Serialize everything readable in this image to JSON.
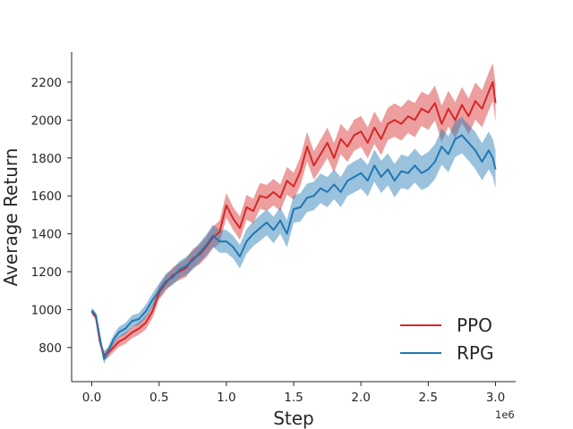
{
  "chart_data": {
    "type": "line",
    "xlabel": "Step",
    "ylabel": "Average Return",
    "x_offset_label": "1e6",
    "xlim": [
      -0.15,
      3.15
    ],
    "ylim": [
      620,
      2360
    ],
    "xticks": [
      0.0,
      0.5,
      1.0,
      1.5,
      2.0,
      2.5,
      3.0
    ],
    "xtick_labels": [
      "0.0",
      "0.5",
      "1.0",
      "1.5",
      "2.0",
      "2.5",
      "3.0"
    ],
    "yticks": [
      800,
      1000,
      1200,
      1400,
      1600,
      1800,
      2000,
      2200
    ],
    "ytick_labels": [
      "800",
      "1000",
      "1200",
      "1400",
      "1600",
      "1800",
      "2000",
      "2200"
    ],
    "grid": false,
    "legend_position": "lower-right",
    "x": [
      0.0,
      0.03,
      0.06,
      0.09,
      0.12,
      0.16,
      0.2,
      0.25,
      0.3,
      0.35,
      0.4,
      0.45,
      0.5,
      0.55,
      0.6,
      0.65,
      0.7,
      0.75,
      0.8,
      0.85,
      0.9,
      0.95,
      1.0,
      1.05,
      1.1,
      1.15,
      1.2,
      1.25,
      1.3,
      1.35,
      1.4,
      1.45,
      1.5,
      1.55,
      1.6,
      1.65,
      1.7,
      1.75,
      1.8,
      1.85,
      1.9,
      1.95,
      2.0,
      2.05,
      2.1,
      2.15,
      2.2,
      2.25,
      2.3,
      2.35,
      2.4,
      2.45,
      2.5,
      2.55,
      2.6,
      2.65,
      2.7,
      2.75,
      2.8,
      2.85,
      2.9,
      2.95,
      2.98,
      3.0
    ],
    "series": [
      {
        "name": "PPO",
        "color": "#d62728",
        "values": [
          990,
          960,
          830,
          760,
          770,
          800,
          830,
          850,
          880,
          900,
          930,
          990,
          1090,
          1140,
          1180,
          1200,
          1220,
          1270,
          1290,
          1330,
          1380,
          1410,
          1550,
          1480,
          1430,
          1540,
          1520,
          1600,
          1590,
          1620,
          1590,
          1680,
          1650,
          1730,
          1860,
          1760,
          1820,
          1880,
          1800,
          1900,
          1860,
          1920,
          1940,
          1880,
          1960,
          1900,
          1980,
          2000,
          1980,
          2020,
          2000,
          2060,
          2040,
          2090,
          1980,
          2060,
          2000,
          2080,
          2020,
          2100,
          2060,
          2150,
          2200,
          2090
        ],
        "band": [
          15,
          15,
          20,
          25,
          25,
          25,
          28,
          30,
          30,
          32,
          35,
          35,
          38,
          40,
          42,
          45,
          48,
          50,
          52,
          55,
          58,
          60,
          65,
          60,
          62,
          65,
          65,
          68,
          68,
          70,
          70,
          72,
          72,
          75,
          78,
          75,
          78,
          80,
          78,
          80,
          80,
          82,
          82,
          82,
          85,
          85,
          85,
          88,
          88,
          88,
          90,
          90,
          92,
          92,
          95,
          95,
          95,
          95,
          95,
          98,
          98,
          100,
          100,
          100
        ]
      },
      {
        "name": "RPG",
        "color": "#1f77b4",
        "values": [
          995,
          970,
          850,
          740,
          780,
          840,
          880,
          900,
          940,
          950,
          990,
          1050,
          1100,
          1150,
          1170,
          1210,
          1230,
          1260,
          1300,
          1340,
          1390,
          1360,
          1360,
          1330,
          1280,
          1360,
          1400,
          1430,
          1460,
          1420,
          1470,
          1400,
          1530,
          1540,
          1590,
          1600,
          1640,
          1620,
          1660,
          1620,
          1680,
          1700,
          1720,
          1680,
          1760,
          1700,
          1740,
          1680,
          1730,
          1720,
          1760,
          1720,
          1740,
          1780,
          1860,
          1820,
          1900,
          1920,
          1880,
          1840,
          1780,
          1840,
          1800,
          1740
        ],
        "band": [
          15,
          15,
          20,
          25,
          25,
          25,
          28,
          30,
          30,
          32,
          35,
          35,
          38,
          40,
          42,
          45,
          48,
          50,
          52,
          55,
          58,
          60,
          60,
          60,
          62,
          65,
          65,
          68,
          68,
          70,
          70,
          72,
          72,
          75,
          75,
          75,
          78,
          80,
          78,
          80,
          80,
          82,
          82,
          82,
          85,
          85,
          85,
          88,
          88,
          88,
          90,
          90,
          92,
          92,
          95,
          95,
          95,
          95,
          95,
          98,
          98,
          100,
          100,
          100
        ]
      }
    ]
  }
}
